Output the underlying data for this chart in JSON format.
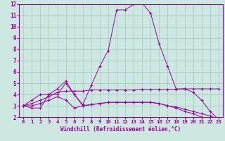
{
  "title": "",
  "xlabel": "Windchill (Refroidissement éolien,°C)",
  "ylabel": "",
  "background_color": "#cce8e0",
  "grid_color": "#a0c8c0",
  "line_color": "#990099",
  "tick_color": "#990099",
  "xlim": [
    -0.5,
    23.5
  ],
  "ylim": [
    2,
    12
  ],
  "xticks": [
    0,
    1,
    2,
    3,
    4,
    5,
    6,
    7,
    8,
    9,
    10,
    11,
    12,
    13,
    14,
    15,
    16,
    17,
    18,
    19,
    20,
    21,
    22,
    23
  ],
  "yticks": [
    2,
    3,
    4,
    5,
    6,
    7,
    8,
    9,
    10,
    11,
    12
  ],
  "series": [
    [
      3.0,
      2.8,
      2.8,
      4.0,
      4.0,
      5.0,
      4.0,
      3.1,
      4.8,
      6.5,
      7.9,
      11.5,
      11.5,
      12.0,
      12.1,
      11.2,
      8.5,
      6.5,
      4.5,
      4.5,
      4.2,
      3.5,
      2.5,
      1.8
    ],
    [
      3.0,
      3.2,
      3.5,
      3.8,
      4.2,
      4.3,
      4.3,
      4.3,
      4.4,
      4.4,
      4.4,
      4.4,
      4.4,
      4.4,
      4.45,
      4.45,
      4.45,
      4.45,
      4.45,
      4.5,
      4.5,
      4.5,
      4.5,
      4.5
    ],
    [
      3.0,
      3.0,
      3.2,
      3.5,
      3.8,
      3.5,
      2.8,
      3.0,
      3.1,
      3.2,
      3.3,
      3.3,
      3.3,
      3.3,
      3.3,
      3.3,
      3.2,
      3.0,
      2.9,
      2.7,
      2.5,
      2.3,
      2.1,
      1.8
    ],
    [
      3.0,
      3.5,
      4.0,
      4.0,
      4.5,
      5.2,
      4.0,
      3.0,
      3.1,
      3.2,
      3.3,
      3.3,
      3.3,
      3.3,
      3.3,
      3.3,
      3.2,
      3.0,
      2.8,
      2.5,
      2.3,
      2.0,
      1.8,
      1.6
    ]
  ]
}
